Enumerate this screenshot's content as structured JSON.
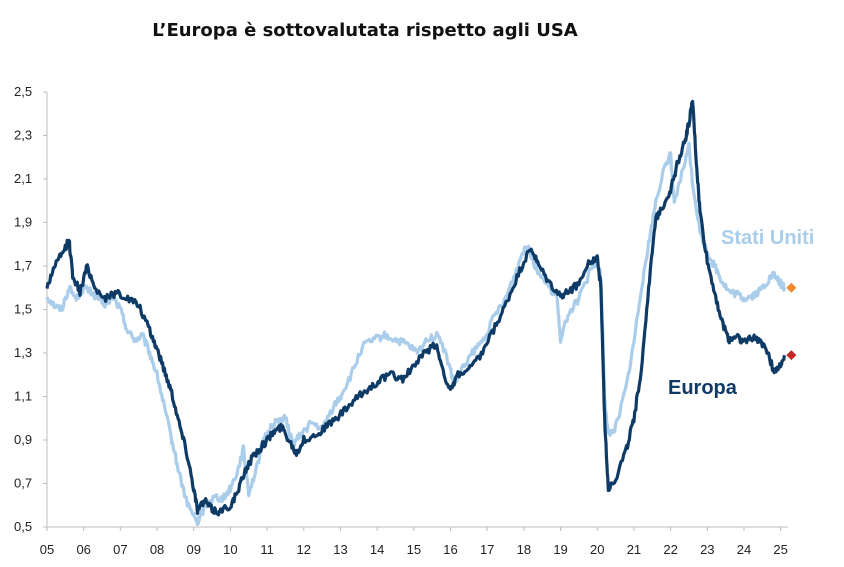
{
  "chart_data": {
    "type": "line",
    "title": "L’Europa è sottovalutata rispetto agli USA",
    "xlabel": "",
    "ylabel": "",
    "x_ticks": [
      "05",
      "06",
      "07",
      "08",
      "09",
      "10",
      "11",
      "12",
      "13",
      "14",
      "15",
      "16",
      "17",
      "18",
      "19",
      "20",
      "21",
      "22",
      "23",
      "24",
      "25"
    ],
    "y_ticks": [
      "2,5",
      "2,3",
      "2,1",
      "1,9",
      "1,7",
      "1,5",
      "1,3",
      "1,1",
      "0,9",
      "0,7",
      "0,5"
    ],
    "y_tick_values": [
      2.5,
      2.3,
      2.1,
      1.9,
      1.7,
      1.5,
      1.3,
      1.1,
      0.9,
      0.7,
      0.5
    ],
    "xlim": [
      2005.0,
      2025.2
    ],
    "ylim": [
      0.5,
      2.5
    ],
    "grid": false,
    "series": [
      {
        "name": "Stati Uniti",
        "color": "#a9cdea",
        "end_marker_color": "#f08a2c",
        "points": [
          [
            2005.0,
            1.56
          ],
          [
            2005.2,
            1.52
          ],
          [
            2005.4,
            1.5
          ],
          [
            2005.6,
            1.6
          ],
          [
            2005.8,
            1.55
          ],
          [
            2006.0,
            1.6
          ],
          [
            2006.2,
            1.58
          ],
          [
            2006.4,
            1.55
          ],
          [
            2006.6,
            1.52
          ],
          [
            2006.8,
            1.56
          ],
          [
            2007.0,
            1.5
          ],
          [
            2007.2,
            1.4
          ],
          [
            2007.4,
            1.36
          ],
          [
            2007.6,
            1.38
          ],
          [
            2007.8,
            1.3
          ],
          [
            2008.0,
            1.2
          ],
          [
            2008.2,
            1.05
          ],
          [
            2008.4,
            0.9
          ],
          [
            2008.6,
            0.75
          ],
          [
            2008.8,
            0.62
          ],
          [
            2009.0,
            0.55
          ],
          [
            2009.1,
            0.52
          ],
          [
            2009.2,
            0.56
          ],
          [
            2009.4,
            0.62
          ],
          [
            2009.6,
            0.64
          ],
          [
            2009.8,
            0.63
          ],
          [
            2010.0,
            0.68
          ],
          [
            2010.2,
            0.76
          ],
          [
            2010.35,
            0.86
          ],
          [
            2010.5,
            0.66
          ],
          [
            2010.7,
            0.76
          ],
          [
            2010.9,
            0.9
          ],
          [
            2011.1,
            0.96
          ],
          [
            2011.3,
            0.99
          ],
          [
            2011.5,
            1.0
          ],
          [
            2011.7,
            0.88
          ],
          [
            2011.9,
            0.92
          ],
          [
            2012.2,
            0.98
          ],
          [
            2012.5,
            0.95
          ],
          [
            2012.8,
            1.05
          ],
          [
            2013.0,
            1.1
          ],
          [
            2013.3,
            1.2
          ],
          [
            2013.6,
            1.33
          ],
          [
            2013.9,
            1.36
          ],
          [
            2014.2,
            1.38
          ],
          [
            2014.5,
            1.36
          ],
          [
            2014.8,
            1.34
          ],
          [
            2015.1,
            1.3
          ],
          [
            2015.4,
            1.37
          ],
          [
            2015.7,
            1.38
          ],
          [
            2016.0,
            1.22
          ],
          [
            2016.1,
            1.15
          ],
          [
            2016.3,
            1.22
          ],
          [
            2016.6,
            1.3
          ],
          [
            2016.9,
            1.36
          ],
          [
            2017.2,
            1.47
          ],
          [
            2017.5,
            1.55
          ],
          [
            2017.8,
            1.68
          ],
          [
            2018.0,
            1.78
          ],
          [
            2018.1,
            1.8
          ],
          [
            2018.3,
            1.7
          ],
          [
            2018.6,
            1.62
          ],
          [
            2018.9,
            1.56
          ],
          [
            2019.0,
            1.35
          ],
          [
            2019.2,
            1.48
          ],
          [
            2019.5,
            1.55
          ],
          [
            2019.8,
            1.67
          ],
          [
            2020.0,
            1.72
          ],
          [
            2020.1,
            1.65
          ],
          [
            2020.2,
            1.1
          ],
          [
            2020.3,
            0.92
          ],
          [
            2020.5,
            0.96
          ],
          [
            2020.8,
            1.15
          ],
          [
            2021.0,
            1.35
          ],
          [
            2021.2,
            1.6
          ],
          [
            2021.4,
            1.8
          ],
          [
            2021.6,
            2.0
          ],
          [
            2021.8,
            2.13
          ],
          [
            2022.0,
            2.22
          ],
          [
            2022.1,
            1.98
          ],
          [
            2022.3,
            2.12
          ],
          [
            2022.5,
            2.25
          ],
          [
            2022.6,
            2.08
          ],
          [
            2022.8,
            1.86
          ],
          [
            2023.0,
            1.76
          ],
          [
            2023.2,
            1.7
          ],
          [
            2023.4,
            1.63
          ],
          [
            2023.6,
            1.58
          ],
          [
            2023.8,
            1.57
          ],
          [
            2024.0,
            1.55
          ],
          [
            2024.2,
            1.56
          ],
          [
            2024.4,
            1.58
          ],
          [
            2024.6,
            1.62
          ],
          [
            2024.8,
            1.66
          ],
          [
            2025.0,
            1.62
          ],
          [
            2025.1,
            1.6
          ]
        ]
      },
      {
        "name": "Europa",
        "color": "#0e3a66",
        "end_marker_color": "#c62828",
        "points": [
          [
            2005.0,
            1.6
          ],
          [
            2005.2,
            1.7
          ],
          [
            2005.4,
            1.75
          ],
          [
            2005.6,
            1.82
          ],
          [
            2005.7,
            1.66
          ],
          [
            2005.9,
            1.58
          ],
          [
            2006.1,
            1.7
          ],
          [
            2006.3,
            1.6
          ],
          [
            2006.6,
            1.55
          ],
          [
            2006.9,
            1.58
          ],
          [
            2007.2,
            1.55
          ],
          [
            2007.5,
            1.52
          ],
          [
            2007.8,
            1.4
          ],
          [
            2008.0,
            1.32
          ],
          [
            2008.2,
            1.22
          ],
          [
            2008.4,
            1.12
          ],
          [
            2008.6,
            0.98
          ],
          [
            2008.8,
            0.85
          ],
          [
            2009.0,
            0.68
          ],
          [
            2009.1,
            0.58
          ],
          [
            2009.3,
            0.62
          ],
          [
            2009.5,
            0.58
          ],
          [
            2009.7,
            0.57
          ],
          [
            2010.0,
            0.6
          ],
          [
            2010.2,
            0.66
          ],
          [
            2010.4,
            0.76
          ],
          [
            2010.6,
            0.82
          ],
          [
            2010.8,
            0.86
          ],
          [
            2011.0,
            0.9
          ],
          [
            2011.2,
            0.94
          ],
          [
            2011.4,
            0.96
          ],
          [
            2011.6,
            0.9
          ],
          [
            2011.8,
            0.84
          ],
          [
            2012.0,
            0.9
          ],
          [
            2012.3,
            0.92
          ],
          [
            2012.6,
            0.96
          ],
          [
            2012.9,
            1.0
          ],
          [
            2013.2,
            1.05
          ],
          [
            2013.5,
            1.1
          ],
          [
            2013.8,
            1.14
          ],
          [
            2014.1,
            1.18
          ],
          [
            2014.4,
            1.2
          ],
          [
            2014.7,
            1.18
          ],
          [
            2015.0,
            1.24
          ],
          [
            2015.3,
            1.3
          ],
          [
            2015.6,
            1.34
          ],
          [
            2015.8,
            1.22
          ],
          [
            2016.0,
            1.12
          ],
          [
            2016.2,
            1.2
          ],
          [
            2016.5,
            1.22
          ],
          [
            2016.8,
            1.28
          ],
          [
            2017.1,
            1.38
          ],
          [
            2017.4,
            1.48
          ],
          [
            2017.7,
            1.6
          ],
          [
            2018.0,
            1.72
          ],
          [
            2018.2,
            1.78
          ],
          [
            2018.4,
            1.7
          ],
          [
            2018.7,
            1.62
          ],
          [
            2019.0,
            1.56
          ],
          [
            2019.2,
            1.58
          ],
          [
            2019.5,
            1.62
          ],
          [
            2019.8,
            1.72
          ],
          [
            2020.0,
            1.74
          ],
          [
            2020.1,
            1.6
          ],
          [
            2020.2,
            1.0
          ],
          [
            2020.3,
            0.68
          ],
          [
            2020.5,
            0.72
          ],
          [
            2020.8,
            0.86
          ],
          [
            2021.0,
            1.0
          ],
          [
            2021.2,
            1.22
          ],
          [
            2021.4,
            1.6
          ],
          [
            2021.6,
            1.92
          ],
          [
            2021.8,
            1.98
          ],
          [
            2022.0,
            2.05
          ],
          [
            2022.2,
            2.18
          ],
          [
            2022.4,
            2.28
          ],
          [
            2022.5,
            2.36
          ],
          [
            2022.6,
            2.46
          ],
          [
            2022.7,
            2.18
          ],
          [
            2022.8,
            1.95
          ],
          [
            2023.0,
            1.72
          ],
          [
            2023.2,
            1.58
          ],
          [
            2023.4,
            1.44
          ],
          [
            2023.6,
            1.36
          ],
          [
            2023.8,
            1.38
          ],
          [
            2024.0,
            1.35
          ],
          [
            2024.2,
            1.37
          ],
          [
            2024.4,
            1.36
          ],
          [
            2024.6,
            1.33
          ],
          [
            2024.8,
            1.22
          ],
          [
            2025.0,
            1.24
          ],
          [
            2025.1,
            1.29
          ]
        ]
      }
    ],
    "annotations": [
      {
        "series": "Stati Uniti",
        "text": "Stati Uniti",
        "color": "#a9cdea"
      },
      {
        "series": "Europa",
        "text": "Europa",
        "color": "#0e3a66"
      }
    ]
  }
}
